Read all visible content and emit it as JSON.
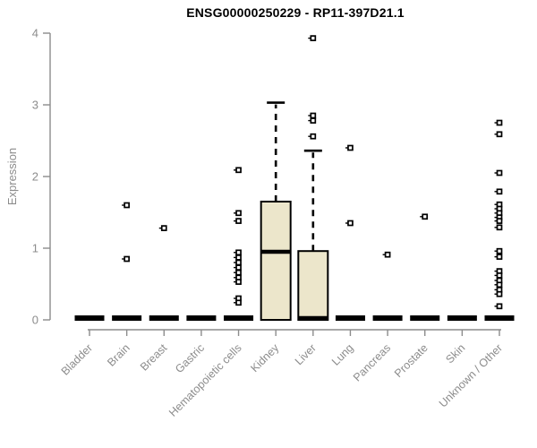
{
  "chart_data": {
    "type": "boxplot",
    "title": "ENSG00000250229 - RP11-397D21.1",
    "ylabel": "Expression",
    "xlabel": "",
    "ylim": [
      0,
      4
    ],
    "yticks": [
      0,
      1,
      2,
      3,
      4
    ],
    "grid": "off",
    "legend": "none",
    "categories": [
      "Bladder",
      "Brain",
      "Breast",
      "Gastric",
      "Hematopoietic cells",
      "Kidney",
      "Liver",
      "Lung",
      "Pancreas",
      "Prostate",
      "Skin",
      "Unknown / Other"
    ],
    "groups": [
      {
        "category": "Bladder",
        "q1": 0,
        "median": 0,
        "q3": 0,
        "whisker_low": 0,
        "whisker_high": 0,
        "outliers": []
      },
      {
        "category": "Brain",
        "q1": 0,
        "median": 0,
        "q3": 0,
        "whisker_low": 0,
        "whisker_high": 0,
        "outliers": [
          1.6,
          0.85
        ]
      },
      {
        "category": "Breast",
        "q1": 0,
        "median": 0,
        "q3": 0,
        "whisker_low": 0,
        "whisker_high": 0,
        "outliers": [
          1.28
        ]
      },
      {
        "category": "Gastric",
        "q1": 0,
        "median": 0,
        "q3": 0,
        "whisker_low": 0,
        "whisker_high": 0,
        "outliers": []
      },
      {
        "category": "Hematopoietic cells",
        "q1": 0,
        "median": 0,
        "q3": 0,
        "whisker_low": 0,
        "whisker_high": 0,
        "outliers": [
          2.09,
          1.49,
          1.38,
          0.94,
          0.87,
          0.8,
          0.73,
          0.66,
          0.59,
          0.53,
          0.3,
          0.24
        ]
      },
      {
        "category": "Kidney",
        "q1": 0,
        "median": 0.95,
        "q3": 1.65,
        "whisker_low": 0,
        "whisker_high": 3.03,
        "outliers": []
      },
      {
        "category": "Liver",
        "q1": 0,
        "median": 0,
        "q3": 0.96,
        "whisker_low": 0,
        "whisker_high": 2.36,
        "outliers": [
          3.93,
          2.85,
          2.78,
          2.56
        ]
      },
      {
        "category": "Lung",
        "q1": 0,
        "median": 0,
        "q3": 0,
        "whisker_low": 0,
        "whisker_high": 0,
        "outliers": [
          2.4,
          1.35
        ]
      },
      {
        "category": "Pancreas",
        "q1": 0,
        "median": 0,
        "q3": 0,
        "whisker_low": 0,
        "whisker_high": 0,
        "outliers": [
          0.91
        ]
      },
      {
        "category": "Prostate",
        "q1": 0,
        "median": 0,
        "q3": 0,
        "whisker_low": 0,
        "whisker_high": 0,
        "outliers": [
          1.44
        ]
      },
      {
        "category": "Skin",
        "q1": 0,
        "median": 0,
        "q3": 0,
        "whisker_low": 0,
        "whisker_high": 0,
        "outliers": []
      },
      {
        "category": "Unknown / Other",
        "q1": 0,
        "median": 0,
        "q3": 0,
        "whisker_low": 0,
        "whisker_high": 0,
        "outliers": [
          2.75,
          2.59,
          2.05,
          1.79,
          1.61,
          1.55,
          1.49,
          1.43,
          1.38,
          1.29,
          0.96,
          0.88,
          0.68,
          0.62,
          0.55,
          0.49,
          0.42,
          0.36,
          0.19
        ]
      }
    ],
    "colors": {
      "box_fill": "#ece6cb",
      "box_stroke": "#000000",
      "axis": "#8c8c8c",
      "tick_text": "#8c8c8c",
      "title_text": "#000000"
    }
  }
}
